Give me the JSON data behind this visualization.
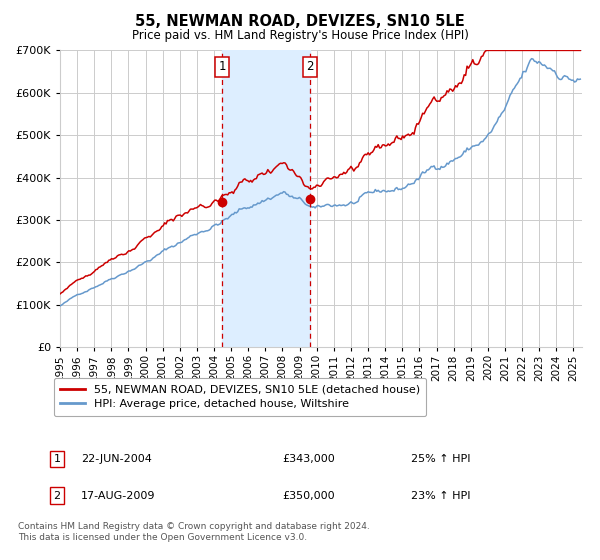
{
  "title": "55, NEWMAN ROAD, DEVIZES, SN10 5LE",
  "subtitle": "Price paid vs. HM Land Registry's House Price Index (HPI)",
  "red_label": "55, NEWMAN ROAD, DEVIZES, SN10 5LE (detached house)",
  "blue_label": "HPI: Average price, detached house, Wiltshire",
  "transaction1_date": "22-JUN-2004",
  "transaction1_price": "£343,000",
  "transaction1_hpi": "25% ↑ HPI",
  "transaction1_year": 2004.47,
  "transaction1_value": 343000,
  "transaction2_date": "17-AUG-2009",
  "transaction2_price": "£350,000",
  "transaction2_hpi": "23% ↑ HPI",
  "transaction2_year": 2009.62,
  "transaction2_value": 350000,
  "footer1": "Contains HM Land Registry data © Crown copyright and database right 2024.",
  "footer2": "This data is licensed under the Open Government Licence v3.0.",
  "red_color": "#cc0000",
  "blue_color": "#6699cc",
  "shading_color": "#ddeeff",
  "background_color": "#ffffff",
  "grid_color": "#cccccc",
  "ylim": [
    0,
    700000
  ],
  "xlim_start": 1995.0,
  "xlim_end": 2025.5
}
